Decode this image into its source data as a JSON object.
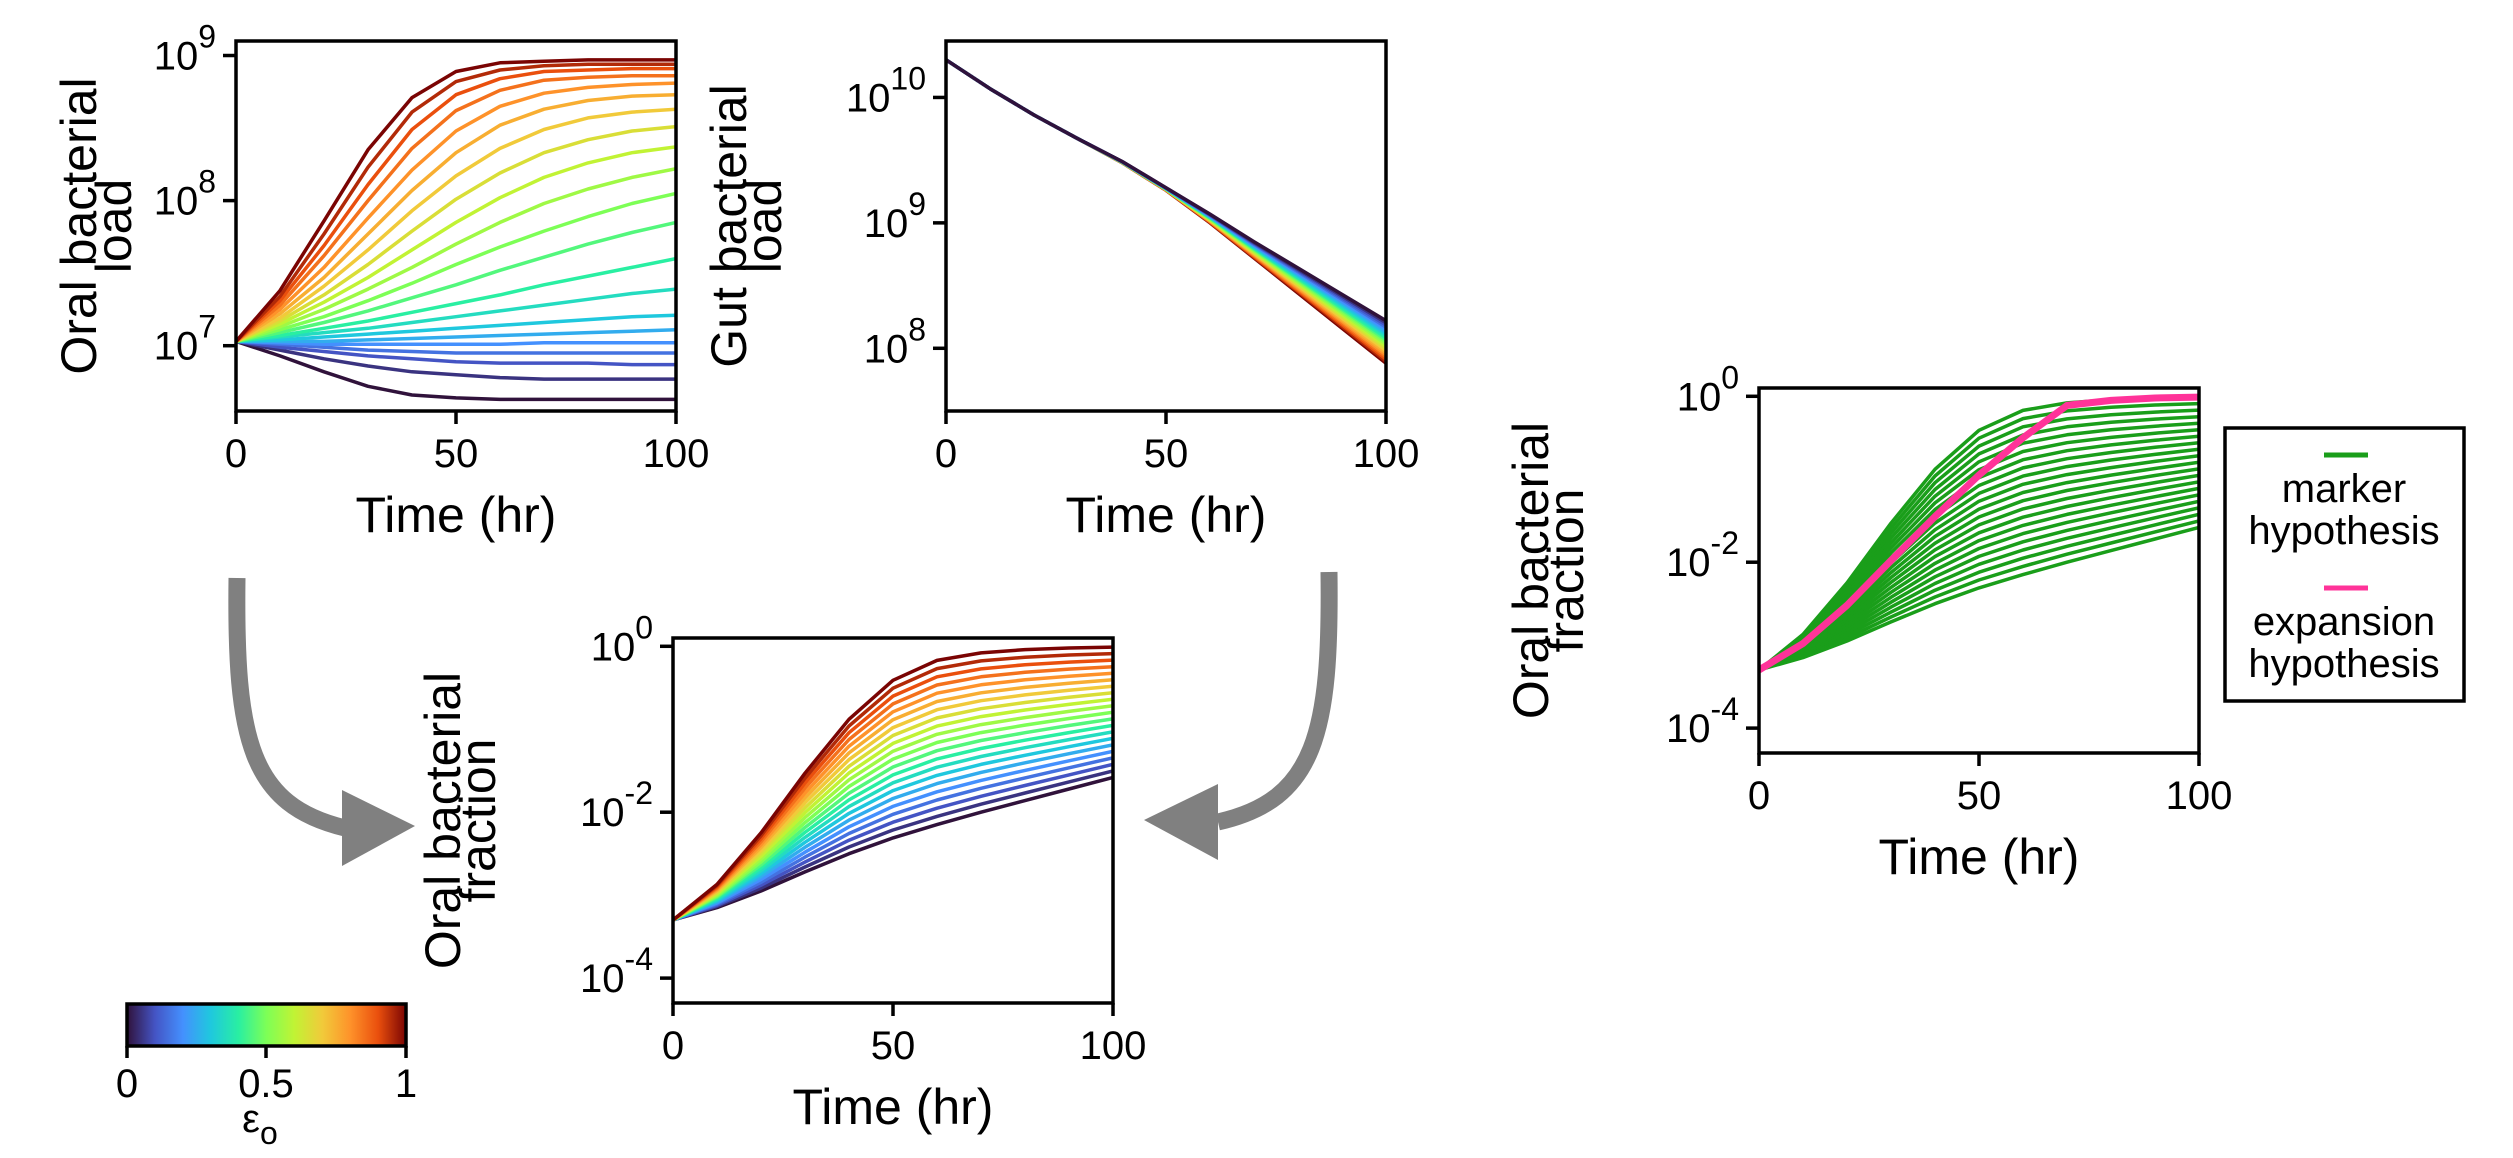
{
  "chart_data": [
    {
      "id": "oral_load",
      "type": "line",
      "xlabel": "Time (hr)",
      "ylabel_lines": [
        "Oral bacterial",
        "load"
      ],
      "xlim": [
        0,
        100
      ],
      "ylim_log10": [
        6.55,
        9.1
      ],
      "yscale": "log",
      "xticks": [
        "0",
        "50",
        "100"
      ],
      "yticks": [
        {
          "base": "10",
          "exp": "7"
        },
        {
          "base": "10",
          "exp": "8"
        },
        {
          "base": "10",
          "exp": "9"
        }
      ],
      "x": [
        0,
        10,
        20,
        30,
        40,
        50,
        60,
        70,
        80,
        90,
        100
      ],
      "series": [
        {
          "eps": 0.0,
          "log10_y": [
            7.03,
            6.93,
            6.82,
            6.72,
            6.66,
            6.64,
            6.63,
            6.63,
            6.63,
            6.63,
            6.63
          ]
        },
        {
          "eps": 0.05,
          "log10_y": [
            7.03,
            6.97,
            6.91,
            6.86,
            6.82,
            6.8,
            6.78,
            6.77,
            6.77,
            6.77,
            6.77
          ]
        },
        {
          "eps": 0.1,
          "log10_y": [
            7.03,
            6.99,
            6.96,
            6.93,
            6.91,
            6.89,
            6.88,
            6.88,
            6.88,
            6.87,
            6.87
          ]
        },
        {
          "eps": 0.15,
          "log10_y": [
            7.03,
            7.01,
            6.99,
            6.97,
            6.96,
            6.95,
            6.95,
            6.95,
            6.95,
            6.95,
            6.95
          ]
        },
        {
          "eps": 0.2,
          "log10_y": [
            7.03,
            7.02,
            7.01,
            7.01,
            7.01,
            7.01,
            7.01,
            7.02,
            7.02,
            7.02,
            7.02
          ]
        },
        {
          "eps": 0.25,
          "log10_y": [
            7.03,
            7.03,
            7.03,
            7.04,
            7.05,
            7.06,
            7.07,
            7.08,
            7.09,
            7.1,
            7.11
          ]
        },
        {
          "eps": 0.3,
          "log10_y": [
            7.03,
            7.04,
            7.06,
            7.08,
            7.1,
            7.12,
            7.14,
            7.16,
            7.18,
            7.2,
            7.21
          ]
        },
        {
          "eps": 0.35,
          "log10_y": [
            7.03,
            7.06,
            7.09,
            7.12,
            7.16,
            7.2,
            7.24,
            7.28,
            7.32,
            7.36,
            7.39
          ]
        },
        {
          "eps": 0.4,
          "log10_y": [
            7.03,
            7.07,
            7.12,
            7.17,
            7.23,
            7.29,
            7.35,
            7.42,
            7.48,
            7.54,
            7.6
          ]
        },
        {
          "eps": 0.45,
          "log10_y": [
            7.03,
            7.09,
            7.16,
            7.24,
            7.33,
            7.42,
            7.52,
            7.61,
            7.7,
            7.78,
            7.85
          ]
        },
        {
          "eps": 0.5,
          "log10_y": [
            7.03,
            7.11,
            7.2,
            7.31,
            7.43,
            7.56,
            7.68,
            7.79,
            7.89,
            7.98,
            8.05
          ]
        },
        {
          "eps": 0.55,
          "log10_y": [
            7.03,
            7.13,
            7.25,
            7.39,
            7.54,
            7.7,
            7.85,
            7.98,
            8.08,
            8.16,
            8.22
          ]
        },
        {
          "eps": 0.6,
          "log10_y": [
            7.03,
            7.15,
            7.3,
            7.47,
            7.66,
            7.85,
            8.02,
            8.16,
            8.26,
            8.33,
            8.37
          ]
        },
        {
          "eps": 0.65,
          "log10_y": [
            7.03,
            7.17,
            7.35,
            7.56,
            7.79,
            8.01,
            8.19,
            8.33,
            8.42,
            8.48,
            8.51
          ]
        },
        {
          "eps": 0.7,
          "log10_y": [
            7.03,
            7.19,
            7.41,
            7.66,
            7.93,
            8.17,
            8.36,
            8.49,
            8.57,
            8.61,
            8.63
          ]
        },
        {
          "eps": 0.75,
          "log10_y": [
            7.03,
            7.22,
            7.47,
            7.77,
            8.07,
            8.33,
            8.52,
            8.63,
            8.69,
            8.72,
            8.73
          ]
        },
        {
          "eps": 0.8,
          "log10_y": [
            7.03,
            7.25,
            7.54,
            7.88,
            8.21,
            8.48,
            8.65,
            8.74,
            8.78,
            8.8,
            8.81
          ]
        },
        {
          "eps": 0.85,
          "log10_y": [
            7.03,
            7.28,
            7.62,
            8.0,
            8.36,
            8.62,
            8.76,
            8.83,
            8.85,
            8.86,
            8.86
          ]
        },
        {
          "eps": 0.9,
          "log10_y": [
            7.03,
            7.31,
            7.69,
            8.11,
            8.49,
            8.73,
            8.84,
            8.89,
            8.9,
            8.91,
            8.91
          ]
        },
        {
          "eps": 0.95,
          "log10_y": [
            7.03,
            7.34,
            7.77,
            8.23,
            8.61,
            8.82,
            8.9,
            8.93,
            8.94,
            8.94,
            8.94
          ]
        },
        {
          "eps": 1.0,
          "log10_y": [
            7.03,
            7.38,
            7.86,
            8.35,
            8.71,
            8.89,
            8.95,
            8.96,
            8.97,
            8.97,
            8.97
          ]
        }
      ]
    },
    {
      "id": "gut_load",
      "type": "line",
      "xlabel": "Time (hr)",
      "ylabel_lines": [
        "Gut bacterial",
        "load"
      ],
      "xlim": [
        0,
        100
      ],
      "ylim_log10": [
        7.5,
        10.45
      ],
      "yscale": "log",
      "xticks": [
        "0",
        "50",
        "100"
      ],
      "yticks": [
        {
          "base": "10",
          "exp": "8"
        },
        {
          "base": "10",
          "exp": "9"
        },
        {
          "base": "10",
          "exp": "10"
        }
      ],
      "x": [
        0,
        10,
        20,
        30,
        40,
        50,
        60,
        70,
        80,
        90,
        100
      ],
      "series_top": {
        "eps": 0.0,
        "log10_y": [
          10.3,
          10.07,
          9.86,
          9.67,
          9.49,
          9.28,
          9.07,
          8.85,
          8.64,
          8.43,
          8.22
        ]
      },
      "series_bottom": {
        "eps": 1.0,
        "log10_y": [
          10.3,
          10.07,
          9.86,
          9.67,
          9.48,
          9.26,
          9.0,
          8.72,
          8.44,
          8.16,
          7.88
        ]
      }
    },
    {
      "id": "oral_fraction",
      "type": "line",
      "xlabel": "Time (hr)",
      "ylabel_lines": [
        "Oral bacterial",
        "fraction"
      ],
      "xlim": [
        0,
        100
      ],
      "ylim_log10": [
        -4.3,
        0.1
      ],
      "yscale": "log",
      "xticks": [
        "0",
        "50",
        "100"
      ],
      "yticks": [
        {
          "base": "10",
          "exp": "-4"
        },
        {
          "base": "10",
          "exp": "-2"
        },
        {
          "base": "10",
          "exp": "0"
        }
      ],
      "x": [
        0,
        10,
        20,
        30,
        40,
        50,
        60,
        70,
        80,
        90,
        100
      ],
      "series_top": {
        "eps": 1.0,
        "log10_y": [
          -3.3,
          -2.87,
          -2.25,
          -1.53,
          -0.88,
          -0.41,
          -0.17,
          -0.08,
          -0.04,
          -0.02,
          -0.01
        ]
      },
      "series_bottom": {
        "eps": 0.0,
        "log10_y": [
          -3.3,
          -3.15,
          -2.95,
          -2.72,
          -2.5,
          -2.31,
          -2.15,
          -2.0,
          -1.86,
          -1.72,
          -1.58
        ]
      }
    },
    {
      "id": "hypotheses",
      "type": "line",
      "xlabel": "Time (hr)",
      "ylabel_lines": [
        "Oral bacterial",
        "fraction"
      ],
      "xlim": [
        0,
        100
      ],
      "ylim_log10": [
        -4.3,
        0.1
      ],
      "yscale": "log",
      "xticks": [
        "0",
        "50",
        "100"
      ],
      "yticks": [
        {
          "base": "10",
          "exp": "-4"
        },
        {
          "base": "10",
          "exp": "-2"
        },
        {
          "base": "10",
          "exp": "0"
        }
      ],
      "x": [
        0,
        10,
        20,
        30,
        40,
        50,
        60,
        70,
        80,
        90,
        100
      ],
      "marker_top": {
        "log10_y": [
          -3.3,
          -2.87,
          -2.25,
          -1.53,
          -0.88,
          -0.41,
          -0.17,
          -0.08,
          -0.04,
          -0.02,
          -0.01
        ]
      },
      "marker_bottom": {
        "log10_y": [
          -3.3,
          -3.15,
          -2.95,
          -2.72,
          -2.5,
          -2.31,
          -2.15,
          -2.0,
          -1.86,
          -1.72,
          -1.58
        ]
      },
      "expansion": {
        "log10_y": [
          -3.3,
          -2.98,
          -2.52,
          -1.98,
          -1.45,
          -0.95,
          -0.5,
          -0.11,
          -0.05,
          -0.02,
          -0.01
        ]
      },
      "marker_color": "#1a9e1a",
      "expansion_color": "#ff3399",
      "legend": {
        "position": "right",
        "entries": [
          {
            "lines": [
              "marker",
              "hypothesis"
            ],
            "color": "#1a9e1a"
          },
          {
            "lines": [
              "expansion",
              "hypothesis"
            ],
            "color": "#ff3399"
          }
        ]
      }
    }
  ],
  "colorbar": {
    "ticks": [
      "0",
      "0.5",
      "1"
    ],
    "label": "ε",
    "label_sub": "o"
  },
  "colors": {
    "arrow": "#808080",
    "axis": "#000000"
  }
}
